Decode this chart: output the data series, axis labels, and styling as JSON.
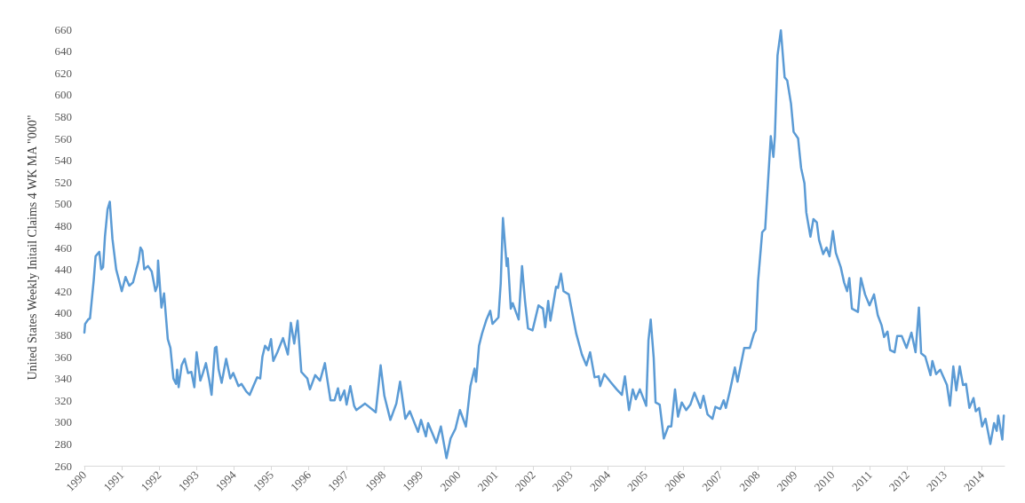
{
  "chart_data": {
    "type": "line",
    "ylabel": "United States Weekly Initail Claims 4 WK MA \"000\"",
    "x": [
      1990.0,
      1990.02,
      1990.1,
      1990.15,
      1990.25,
      1990.3,
      1990.4,
      1990.45,
      1990.5,
      1990.55,
      1990.62,
      1990.68,
      1990.75,
      1990.85,
      1991.0,
      1991.1,
      1991.2,
      1991.3,
      1991.45,
      1991.5,
      1991.55,
      1991.6,
      1991.7,
      1991.8,
      1991.9,
      1991.95,
      1991.97,
      1992.06,
      1992.13,
      1992.23,
      1992.3,
      1992.38,
      1992.45,
      1992.48,
      1992.52,
      1992.6,
      1992.68,
      1992.77,
      1992.86,
      1992.94,
      1993.0,
      1993.1,
      1993.17,
      1993.25,
      1993.34,
      1993.4,
      1993.49,
      1993.53,
      1993.59,
      1993.67,
      1993.73,
      1993.79,
      1993.9,
      1993.98,
      1994.12,
      1994.2,
      1994.33,
      1994.42,
      1994.53,
      1994.62,
      1994.7,
      1994.76,
      1994.83,
      1994.92,
      1994.99,
      1995.05,
      1995.16,
      1995.31,
      1995.44,
      1995.52,
      1995.61,
      1995.7,
      1995.8,
      1995.96,
      1996.03,
      1996.17,
      1996.3,
      1996.43,
      1996.49,
      1996.58,
      1996.69,
      1996.78,
      1996.84,
      1996.95,
      1997.01,
      1997.11,
      1997.21,
      1997.27,
      1997.5,
      1997.79,
      1997.92,
      1998.02,
      1998.18,
      1998.34,
      1998.44,
      1998.58,
      1998.7,
      1998.92,
      1999.0,
      1999.13,
      1999.19,
      1999.41,
      1999.53,
      1999.68,
      1999.79,
      1999.92,
      2000.04,
      2000.2,
      2000.32,
      2000.43,
      2000.47,
      2000.55,
      2000.63,
      2000.75,
      2000.85,
      2000.91,
      2001.07,
      2001.13,
      2001.19,
      2001.29,
      2001.32,
      2001.4,
      2001.45,
      2001.61,
      2001.7,
      2001.78,
      2001.86,
      2001.98,
      2002.14,
      2002.26,
      2002.32,
      2002.4,
      2002.46,
      2002.61,
      2002.66,
      2002.74,
      2002.81,
      2002.95,
      2003.06,
      2003.15,
      2003.3,
      2003.42,
      2003.52,
      2003.64,
      2003.75,
      2003.79,
      2003.9,
      2004.06,
      2004.23,
      2004.37,
      2004.45,
      2004.56,
      2004.66,
      2004.74,
      2004.85,
      2005.02,
      2005.08,
      2005.14,
      2005.22,
      2005.27,
      2005.38,
      2005.49,
      2005.61,
      2005.69,
      2005.79,
      2005.87,
      2005.97,
      2006.09,
      2006.2,
      2006.31,
      2006.47,
      2006.55,
      2006.66,
      2006.79,
      2006.87,
      2007.0,
      2007.09,
      2007.15,
      2007.26,
      2007.39,
      2007.46,
      2007.64,
      2007.79,
      2007.9,
      2007.95,
      2008.01,
      2008.12,
      2008.2,
      2008.35,
      2008.42,
      2008.46,
      2008.53,
      2008.62,
      2008.72,
      2008.79,
      2008.89,
      2008.96,
      2009.08,
      2009.16,
      2009.25,
      2009.3,
      2009.41,
      2009.49,
      2009.58,
      2009.64,
      2009.75,
      2009.84,
      2009.92,
      2010.01,
      2010.09,
      2010.22,
      2010.31,
      2010.39,
      2010.45,
      2010.52,
      2010.68,
      2010.76,
      2010.87,
      2010.99,
      2011.11,
      2011.21,
      2011.31,
      2011.38,
      2011.47,
      2011.54,
      2011.66,
      2011.73,
      2011.85,
      2011.98,
      2012.11,
      2012.22,
      2012.31,
      2012.37,
      2012.48,
      2012.62,
      2012.67,
      2012.77,
      2012.88,
      2013.06,
      2013.14,
      2013.23,
      2013.31,
      2013.4,
      2013.49,
      2013.57,
      2013.66,
      2013.77,
      2013.83,
      2013.92,
      2014.0,
      2014.09,
      2014.22,
      2014.32,
      2014.39,
      2014.43,
      2014.54,
      2014.58
    ],
    "series": [
      {
        "color": "#5b9bd5",
        "values": [
          382,
          390,
          394,
          395,
          430,
          452,
          456,
          440,
          442,
          470,
          495,
          502,
          468,
          440,
          420,
          433,
          425,
          428,
          448,
          460,
          457,
          440,
          443,
          438,
          420,
          425,
          448,
          405,
          418,
          376,
          368,
          340,
          335,
          348,
          332,
          352,
          358,
          345,
          346,
          332,
          364,
          338,
          345,
          354,
          338,
          325,
          368,
          369,
          348,
          336,
          347,
          358,
          340,
          345,
          333,
          335,
          328,
          325,
          334,
          341,
          340,
          360,
          370,
          366,
          376,
          356,
          364,
          377,
          362,
          391,
          372,
          393,
          346,
          340,
          330,
          343,
          338,
          354,
          340,
          320,
          320,
          331,
          320,
          329,
          316,
          333,
          315,
          311,
          317,
          309,
          352,
          324,
          302,
          317,
          337,
          303,
          310,
          291,
          302,
          287,
          299,
          281,
          296,
          267,
          285,
          294,
          311,
          296,
          333,
          349,
          337,
          370,
          381,
          394,
          402,
          390,
          396,
          427,
          487,
          443,
          450,
          404,
          409,
          394,
          443,
          411,
          386,
          384,
          407,
          404,
          387,
          411,
          393,
          424,
          423,
          436,
          420,
          417,
          397,
          381,
          362,
          352,
          364,
          341,
          342,
          333,
          344,
          337,
          330,
          325,
          342,
          311,
          330,
          321,
          330,
          315,
          375,
          394,
          359,
          318,
          316,
          285,
          296,
          296,
          330,
          305,
          318,
          311,
          316,
          327,
          313,
          324,
          307,
          303,
          314,
          312,
          320,
          313,
          329,
          350,
          337,
          368,
          368,
          381,
          384,
          429,
          474,
          477,
          562,
          543,
          562,
          636,
          659,
          616,
          613,
          592,
          566,
          560,
          533,
          519,
          492,
          470,
          486,
          483,
          467,
          454,
          460,
          452,
          475,
          455,
          442,
          428,
          420,
          432,
          404,
          401,
          432,
          417,
          407,
          417,
          398,
          389,
          378,
          383,
          366,
          364,
          379,
          379,
          368,
          382,
          364,
          405,
          363,
          360,
          343,
          356,
          344,
          348,
          334,
          315,
          351,
          329,
          351,
          334,
          335,
          313,
          322,
          310,
          313,
          296,
          303,
          280,
          299,
          292,
          306,
          284,
          306
        ]
      }
    ],
    "xlim": [
      1990,
      2014.6
    ],
    "xticks": [
      1990,
      1991,
      1992,
      1993,
      1994,
      1995,
      1996,
      1997,
      1998,
      1999,
      2000,
      2001,
      2002,
      2003,
      2004,
      2005,
      2006,
      2007,
      2008,
      2009,
      2010,
      2011,
      2012,
      2013,
      2014
    ],
    "ylim": [
      260,
      660
    ],
    "yticks": [
      260,
      280,
      300,
      320,
      340,
      360,
      380,
      400,
      420,
      440,
      460,
      480,
      500,
      520,
      540,
      560,
      580,
      600,
      620,
      640,
      660
    ],
    "grid": false,
    "marker": "none",
    "line_style": "solid"
  }
}
